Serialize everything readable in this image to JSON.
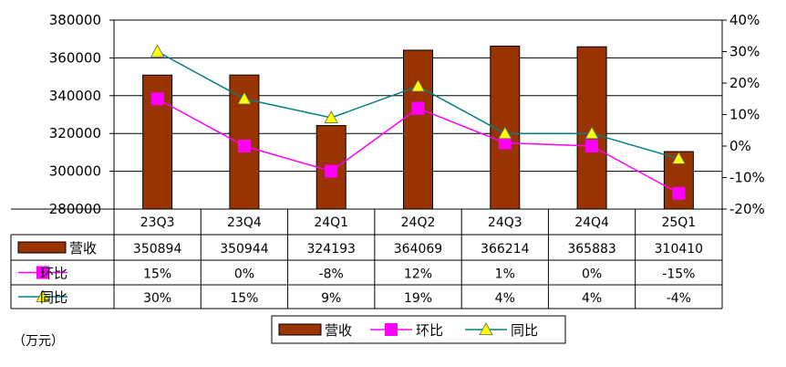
{
  "chart_data": {
    "type": "bar",
    "categories": [
      "23Q3",
      "23Q4",
      "24Q1",
      "24Q2",
      "24Q3",
      "24Q4",
      "25Q1"
    ],
    "series": [
      {
        "name": "营收",
        "kind": "bar",
        "axis": "left",
        "color": "#993300",
        "values": [
          350894,
          350944,
          324193,
          364069,
          366214,
          365883,
          310410
        ]
      },
      {
        "name": "环比",
        "kind": "line",
        "axis": "right",
        "color": "#FF00FF",
        "marker": "square",
        "values": [
          15,
          0,
          -8,
          12,
          1,
          0,
          -15
        ]
      },
      {
        "name": "同比",
        "kind": "line",
        "axis": "right",
        "color": "#008080",
        "marker": "triangle",
        "marker_color": "#FFFF00",
        "values": [
          30,
          15,
          9,
          19,
          4,
          4,
          -4
        ]
      }
    ],
    "table_rows": [
      {
        "label": "营收",
        "cells": [
          "350894",
          "350944",
          "324193",
          "364069",
          "366214",
          "365883",
          "310410"
        ]
      },
      {
        "label": "环比",
        "cells": [
          "15%",
          "0%",
          "-8%",
          "12%",
          "1%",
          "0%",
          "-15%"
        ]
      },
      {
        "label": "同比",
        "cells": [
          "30%",
          "15%",
          "9%",
          "19%",
          "4%",
          "4%",
          "-4%"
        ]
      }
    ],
    "y_left": {
      "min": 280000,
      "max": 380000,
      "step": 20000,
      "ticks": [
        "280000",
        "300000",
        "320000",
        "340000",
        "360000",
        "380000"
      ]
    },
    "y_right": {
      "min": -20,
      "max": 40,
      "step": 10,
      "ticks": [
        "-20%",
        "-10%",
        "0%",
        "10%",
        "20%",
        "30%",
        "40%"
      ]
    },
    "unit": "（万元）",
    "legend": {
      "placement": "bottom",
      "items": [
        "营收",
        "环比",
        "同比"
      ]
    },
    "grid": "horizontal"
  }
}
